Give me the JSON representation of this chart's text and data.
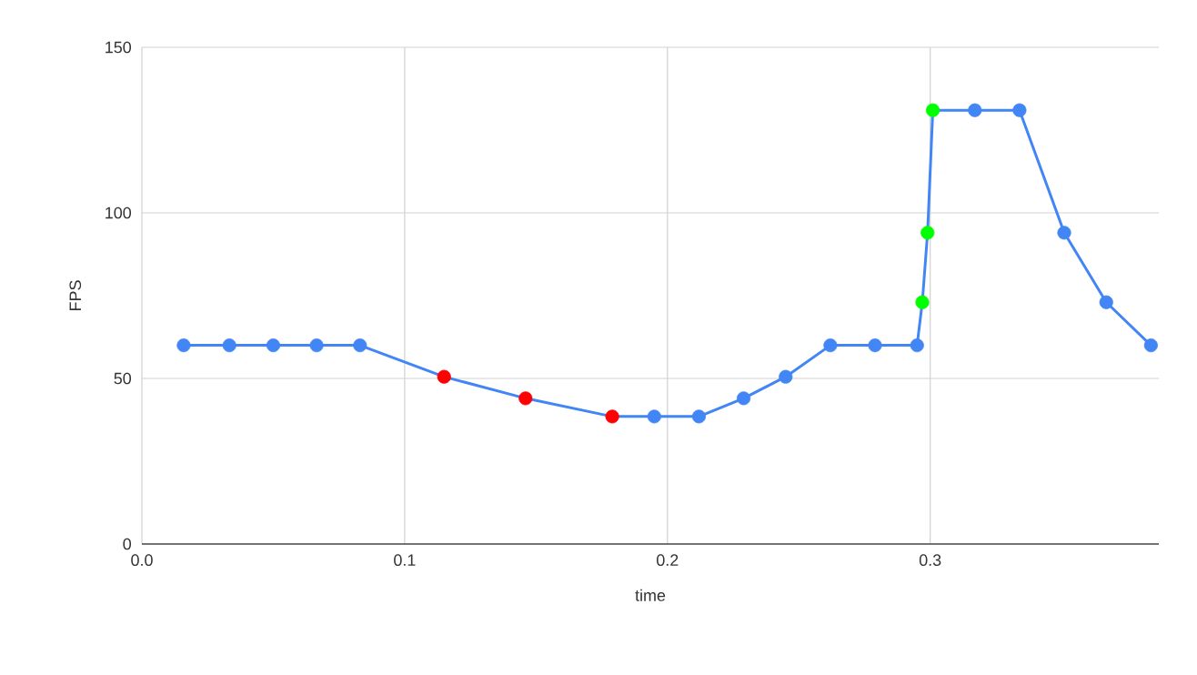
{
  "chart_data": {
    "type": "line",
    "xlabel": "time",
    "ylabel": "FPS",
    "x": [
      0.0159,
      0.0333,
      0.05,
      0.0665,
      0.083,
      0.115,
      0.146,
      0.179,
      0.195,
      0.212,
      0.229,
      0.245,
      0.262,
      0.279,
      0.295,
      0.297,
      0.299,
      0.301,
      0.317,
      0.334,
      0.351,
      0.367,
      0.384
    ],
    "series": [
      {
        "color": "#4285f4",
        "values": [
          60,
          60,
          60,
          60,
          60,
          50.5,
          44,
          38.5,
          38.5,
          38.5,
          44,
          50.5,
          60,
          60,
          60,
          73,
          94,
          131,
          131,
          131,
          94,
          73,
          60
        ],
        "colors": [
          "#4285f4",
          "#4285f4",
          "#4285f4",
          "#4285f4",
          "#4285f4",
          "#ff0000",
          "#ff0000",
          "#ff0000",
          "#4285f4",
          "#4285f4",
          "#4285f4",
          "#4285f4",
          "#4285f4",
          "#4285f4",
          "#4285f4",
          "#00ff00",
          "#00ff00",
          "#00ff00",
          "#4285f4",
          "#4285f4",
          "#4285f4",
          "#4285f4",
          "#4285f4"
        ]
      }
    ],
    "xlim": [
      0,
      0.387
    ],
    "ylim": [
      0,
      150
    ],
    "xticks": [
      {
        "value": 0,
        "label": "0.0"
      },
      {
        "value": 0.1,
        "label": "0.1"
      },
      {
        "value": 0.2,
        "label": "0.2"
      },
      {
        "value": 0.3,
        "label": "0.3"
      }
    ],
    "yticks": [
      0,
      50,
      100,
      150
    ],
    "grid": true,
    "marker": "circle",
    "line_style": "solid"
  }
}
